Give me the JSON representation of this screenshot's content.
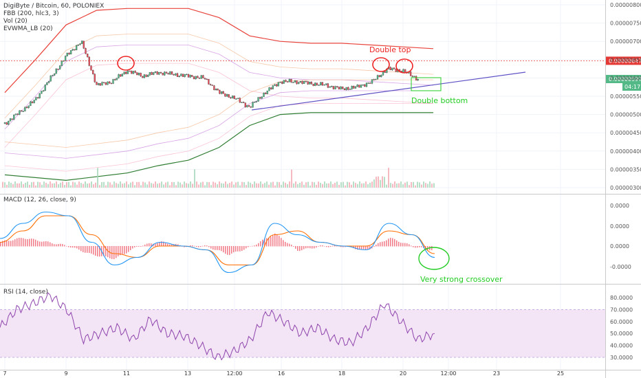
{
  "header": {
    "symbol_line": "DigiByte / Bitcoin, 60, POLONIEX",
    "indicators": [
      "FBB (200, hlc3, 3)",
      "Vol (20)",
      "EVWMA_LB (20)"
    ]
  },
  "price_axis": {
    "ticks": [
      "0.00000800",
      "0.00000750",
      "0.00000700",
      "0.00000650",
      "0.00000600",
      "0.00000550",
      "0.00000500",
      "0.00000450",
      "0.00000400",
      "0.00000350",
      "0.00000300"
    ],
    "dashed_level_label": "0.00000647",
    "last_price_label": "0.00000597",
    "countdown_label": "04:17"
  },
  "annotations": {
    "double_top": "Double top",
    "double_bottom": "Double bottom",
    "crossover": "Very strong crossover"
  },
  "macd": {
    "title": "MACD (12, 26, close, 9)",
    "ticks": [
      "0.0000",
      "0.0000",
      "0.0000",
      "-0.0000"
    ]
  },
  "rsi": {
    "title": "RSI (14, close)",
    "ticks": [
      "80.0000",
      "70.0000",
      "60.0000",
      "50.0000",
      "40.0000",
      "30.0000"
    ]
  },
  "x_axis": {
    "ticks": [
      "7",
      "9",
      "11",
      "13",
      "12:00",
      "16",
      "18",
      "20",
      "12:00",
      "23",
      "25"
    ]
  },
  "colors": {
    "bull": "#53b987",
    "bear": "#eb4d5c",
    "annotation_red": "#ee2222",
    "annotation_green": "#22cc22",
    "trendline": "#5b4fc4",
    "macd_line": "#2196f3",
    "signal_line": "#ff6d00",
    "rsi_line": "#8e44ad",
    "rsi_band": "#e1bee7"
  },
  "chart_data": [
    {
      "type": "candlestick",
      "title": "DigiByte / Bitcoin, 60, POLONIEX",
      "ylim": [
        2.9e-06,
        8.1e-06
      ],
      "x_ticks": [
        "7",
        "9",
        "11",
        "13",
        "12:00",
        "16",
        "18",
        "20",
        "12:00",
        "23",
        "25"
      ],
      "series": [
        {
          "name": "DigiByte / Bitcoin",
          "close_path": [
            [
              7,
              4.75e-06
            ],
            [
              8,
              5.4e-06
            ],
            [
              9,
              6.6e-06
            ],
            [
              9.5,
              7e-06
            ],
            [
              10,
              5.8e-06
            ],
            [
              10.5,
              5.9e-06
            ],
            [
              11,
              6.2e-06
            ],
            [
              11.5,
              6.05e-06
            ],
            [
              12,
              6.15e-06
            ],
            [
              12.5,
              6.1e-06
            ],
            [
              13,
              6.05e-06
            ],
            [
              13.5,
              6e-06
            ],
            [
              14,
              5.6e-06
            ],
            [
              14.5,
              5.45e-06
            ],
            [
              15,
              5.2e-06
            ],
            [
              15.5,
              5.6e-06
            ],
            [
              16,
              5.9e-06
            ],
            [
              16.5,
              5.9e-06
            ],
            [
              17,
              5.85e-06
            ],
            [
              17.5,
              5.8e-06
            ],
            [
              18,
              5.7e-06
            ],
            [
              18.5,
              5.75e-06
            ],
            [
              19,
              5.9e-06
            ],
            [
              19.5,
              6.25e-06
            ],
            [
              20,
              6.2e-06
            ],
            [
              20.5,
              5.97e-06
            ]
          ]
        },
        {
          "name": "FBB upper",
          "path": [
            [
              7,
              5.6e-06
            ],
            [
              8,
              6.5e-06
            ],
            [
              9,
              7.45e-06
            ],
            [
              10,
              7.85e-06
            ],
            [
              11,
              7.9e-06
            ],
            [
              12,
              7.9e-06
            ],
            [
              13,
              7.9e-06
            ],
            [
              14,
              7.65e-06
            ],
            [
              15,
              7.15e-06
            ],
            [
              16,
              7e-06
            ],
            [
              17,
              6.95e-06
            ],
            [
              18,
              6.95e-06
            ],
            [
              19,
              6.9e-06
            ],
            [
              20,
              6.85e-06
            ],
            [
              21,
              6.8e-06
            ]
          ]
        },
        {
          "name": "FBB basis",
          "path": [
            [
              7,
              4.4e-06
            ],
            [
              9,
              4.7e-06
            ],
            [
              11,
              4.95e-06
            ],
            [
              13,
              4.9e-06
            ],
            [
              15,
              4.95e-06
            ],
            [
              16,
              5.05e-06
            ],
            [
              18,
              5.1e-06
            ],
            [
              21,
              5.1e-06
            ]
          ]
        },
        {
          "name": "FBB lower",
          "path": [
            [
              7,
              3.35e-06
            ],
            [
              9,
              3.2e-06
            ],
            [
              11,
              3.4e-06
            ],
            [
              12,
              3.6e-06
            ],
            [
              13,
              3.75e-06
            ],
            [
              14,
              4.1e-06
            ],
            [
              15,
              4.7e-06
            ],
            [
              16,
              5e-06
            ],
            [
              17,
              5.05e-06
            ],
            [
              19,
              5.05e-06
            ],
            [
              21,
              5.05e-06
            ]
          ]
        }
      ],
      "levels": [
        {
          "value": 6.47e-06,
          "label": "0.00000647"
        }
      ],
      "last_price": 5.97e-06,
      "annotations": [
        "Double top",
        "Double bottom"
      ]
    },
    {
      "type": "line",
      "title": "MACD (12, 26, close, 9)",
      "y_ticks": [
        "0.0000",
        "0.0000",
        "0.0000",
        "-0.0000"
      ],
      "series": [
        {
          "name": "MACD",
          "values_relative": [
            0.2,
            0.6,
            0.9,
            0.8,
            0.1,
            -0.5,
            -0.3,
            0.1,
            0.0,
            -0.1,
            -0.7,
            -0.5,
            0.6,
            0.3,
            0.1,
            0.0,
            -0.1,
            0.6,
            0.3,
            -0.3
          ]
        },
        {
          "name": "Signal",
          "values_relative": [
            0.1,
            0.4,
            0.8,
            0.8,
            0.3,
            -0.2,
            -0.3,
            0.0,
            0.0,
            -0.1,
            -0.5,
            -0.5,
            0.3,
            0.4,
            0.1,
            0.0,
            0.0,
            0.4,
            0.3,
            -0.2
          ]
        }
      ],
      "annotations": [
        "Very strong crossover"
      ]
    },
    {
      "type": "line",
      "title": "RSI (14, close)",
      "ylim": [
        25,
        85
      ],
      "band": [
        30,
        70
      ],
      "y_ticks": [
        "80.0000",
        "70.0000",
        "60.0000",
        "50.0000",
        "40.0000",
        "30.0000"
      ],
      "series": [
        {
          "name": "RSI",
          "values": [
            55,
            70,
            75,
            82,
            70,
            45,
            50,
            55,
            45,
            62,
            50,
            48,
            40,
            30,
            35,
            45,
            68,
            60,
            50,
            55,
            45,
            42,
            55,
            75,
            60,
            45,
            50
          ]
        }
      ]
    }
  ]
}
